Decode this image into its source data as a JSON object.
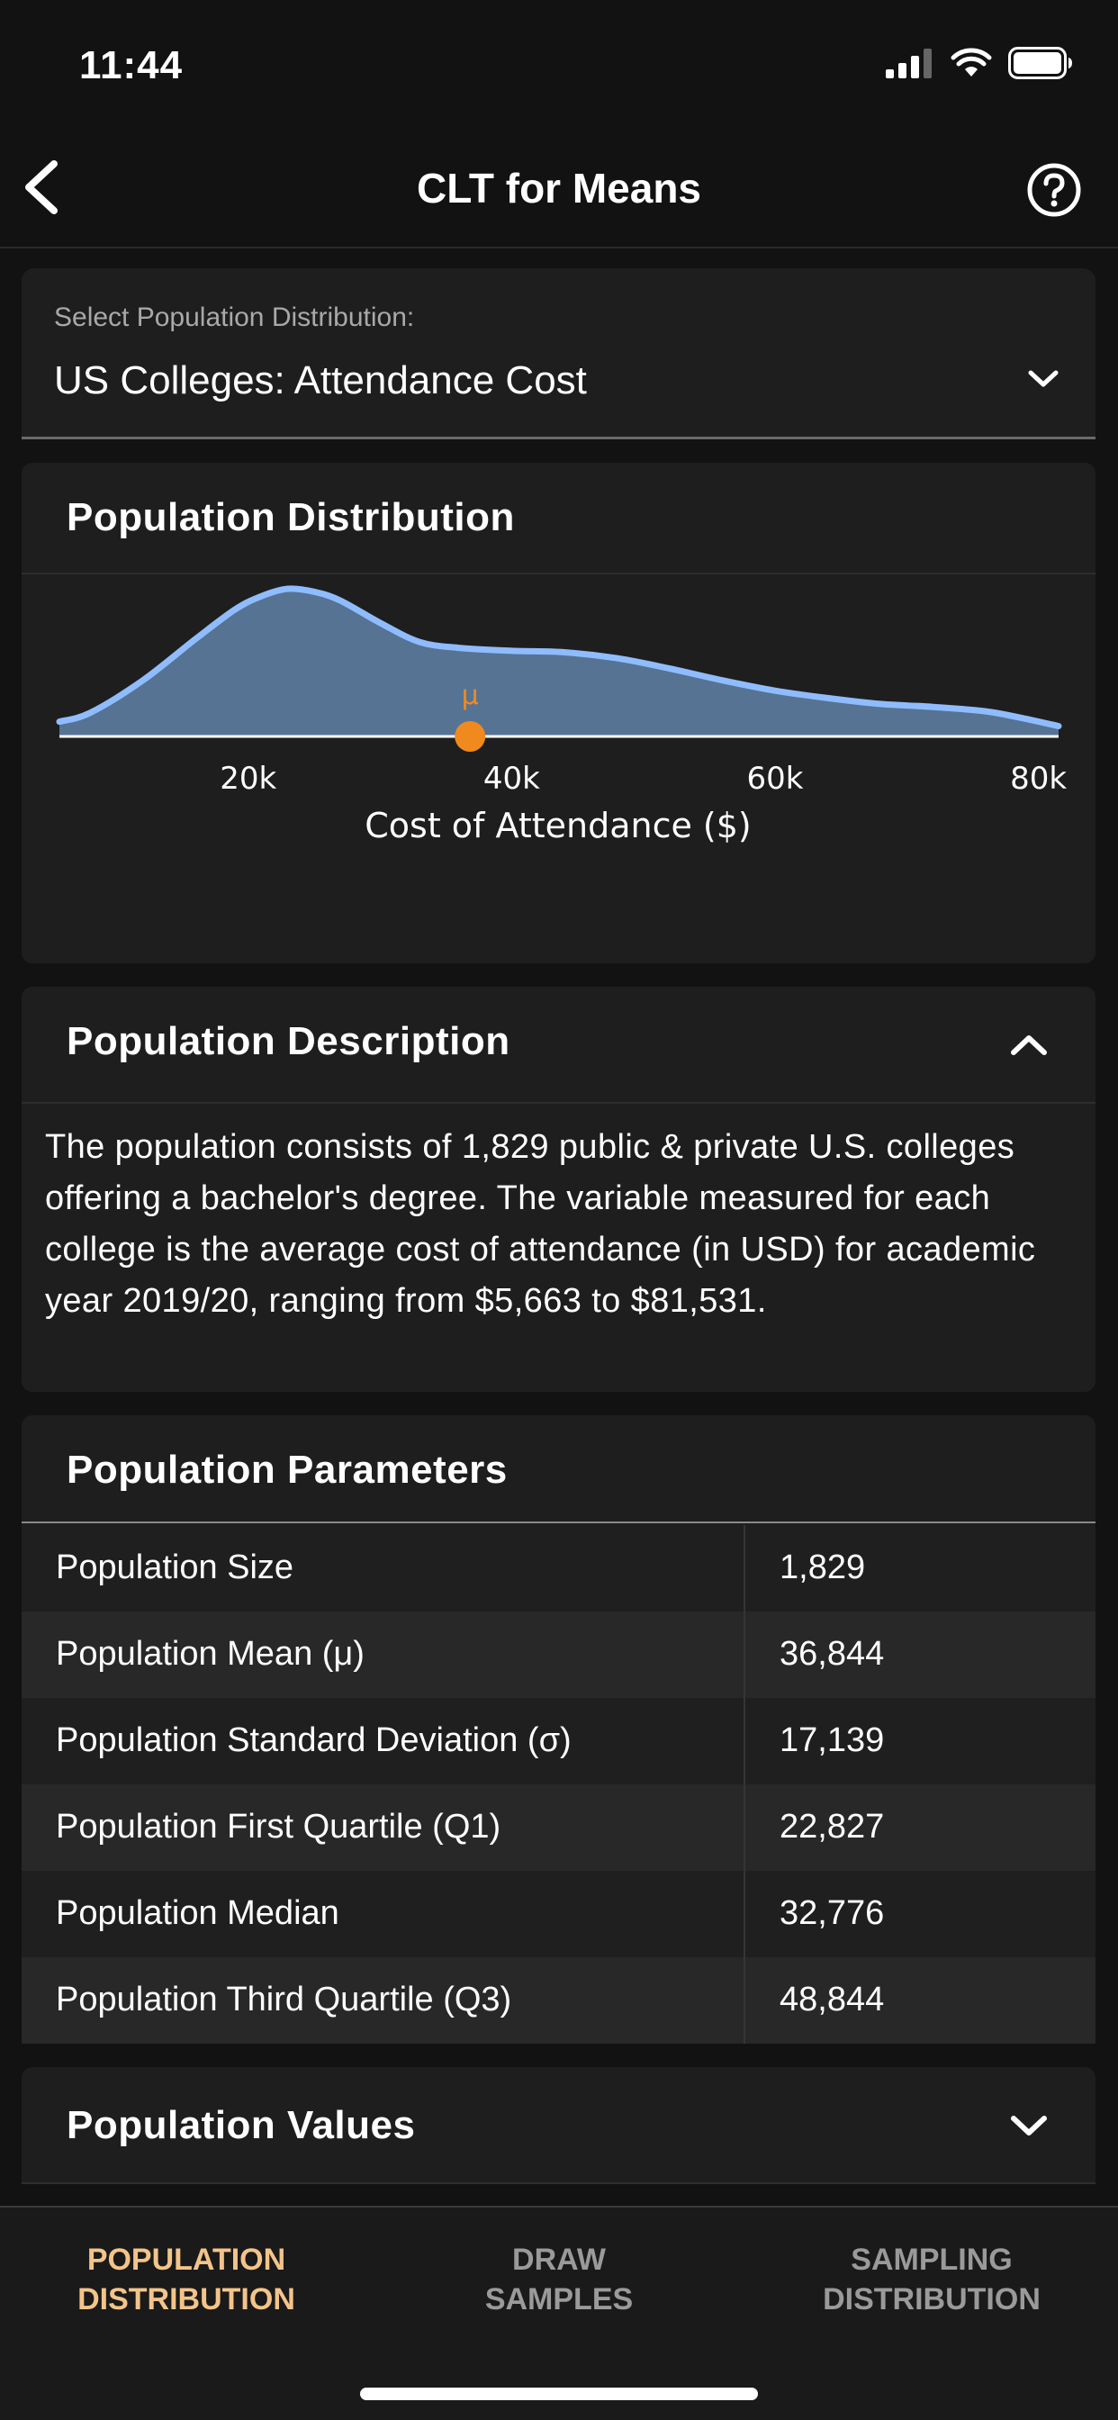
{
  "status": {
    "time": "11:44"
  },
  "nav": {
    "title": "CLT for Means"
  },
  "selector": {
    "label": "Select Population Distribution:",
    "value": "US Colleges: Attendance Cost"
  },
  "distribution": {
    "title": "Population Distribution",
    "mean_symbol": "μ",
    "accent_color": "#8fbcff",
    "fill_color": "#567394",
    "mean_color": "#f08a1e"
  },
  "chart_data": {
    "type": "area",
    "xlabel": "Cost of Attendance ($)",
    "ylabel": "",
    "xlim": [
      5663,
      81531
    ],
    "xticks": [
      20000,
      40000,
      60000,
      80000
    ],
    "xtick_labels": [
      "20k",
      "40k",
      "60k",
      "80k"
    ],
    "mean_marker": 36844,
    "series": [
      {
        "x": [
          5663,
          8000,
          12000,
          16000,
          19000,
          21000,
          23000,
          25000,
          27000,
          30000,
          33000,
          36000,
          40000,
          44000,
          48000,
          52000,
          56000,
          60000,
          64000,
          68000,
          72000,
          76000,
          79000,
          81531
        ],
        "y": [
          0.1,
          0.16,
          0.38,
          0.66,
          0.86,
          0.95,
          1.0,
          0.98,
          0.92,
          0.77,
          0.64,
          0.6,
          0.58,
          0.57,
          0.53,
          0.46,
          0.38,
          0.31,
          0.26,
          0.22,
          0.2,
          0.17,
          0.12,
          0.07
        ]
      }
    ]
  },
  "description": {
    "title": "Population Description",
    "text": "The population consists of 1,829 public & private U.S. colleges offering a bachelor's degree. The variable measured for each college is the average cost of attendance (in USD) for academic year 2019/20, ranging from $5,663 to $81,531."
  },
  "parameters": {
    "title": "Population Parameters",
    "rows": [
      {
        "name": "Population Size",
        "value": "1,829"
      },
      {
        "name": "Population Mean (μ)",
        "value": "36,844"
      },
      {
        "name": "Population Standard Deviation (σ)",
        "value": "17,139"
      },
      {
        "name": "Population First Quartile (Q1)",
        "value": "22,827"
      },
      {
        "name": "Population Median",
        "value": "32,776"
      },
      {
        "name": "Population Third Quartile (Q3)",
        "value": "48,844"
      }
    ]
  },
  "values_section": {
    "title": "Population Values"
  },
  "tabs": [
    {
      "line1": "POPULATION",
      "line2": "DISTRIBUTION",
      "active": true
    },
    {
      "line1": "DRAW",
      "line2": "SAMPLES",
      "active": false
    },
    {
      "line1": "SAMPLING",
      "line2": "DISTRIBUTION",
      "active": false
    }
  ]
}
